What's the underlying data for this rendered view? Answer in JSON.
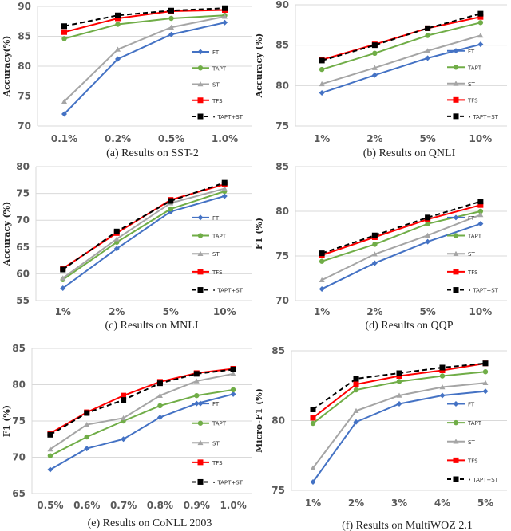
{
  "series_styles": [
    {
      "name": "FT",
      "color": "#4472C4",
      "marker": "diamond",
      "dash": false
    },
    {
      "name": "TAPT",
      "color": "#70AD47",
      "marker": "circle",
      "dash": false
    },
    {
      "name": "ST",
      "color": "#A5A5A5",
      "marker": "triangle",
      "dash": false
    },
    {
      "name": "TFS",
      "color": "#FF0000",
      "marker": "square",
      "dash": false
    },
    {
      "name": "TAPT+ST",
      "color": "#000000",
      "marker": "square",
      "dash": true
    }
  ],
  "chart_data": [
    {
      "type": "line",
      "caption": "(a) Results on SST-2",
      "ylabel": "Accuracy(%)",
      "xlabel": "",
      "ylim": [
        70,
        90
      ],
      "yticks": [
        70,
        75,
        80,
        85,
        90
      ],
      "grid": true,
      "legend": "right",
      "categories": [
        "0.1%",
        "0.2%",
        "0.5%",
        "1.0%"
      ],
      "series": [
        {
          "name": "FT",
          "values": [
            72.0,
            81.2,
            85.3,
            87.3
          ]
        },
        {
          "name": "TAPT",
          "values": [
            84.6,
            87.0,
            88.0,
            88.5
          ]
        },
        {
          "name": "ST",
          "values": [
            74.1,
            82.8,
            86.5,
            88.3
          ]
        },
        {
          "name": "TFS",
          "values": [
            85.7,
            88.0,
            89.2,
            89.4
          ]
        },
        {
          "name": "TAPT+ST",
          "values": [
            86.7,
            88.5,
            89.3,
            89.7
          ]
        }
      ]
    },
    {
      "type": "line",
      "caption": "(b) Results on QNLI",
      "ylabel": "Accuracy (%)",
      "xlabel": "",
      "ylim": [
        75,
        90
      ],
      "yticks": [
        75,
        80,
        85,
        90
      ],
      "grid": true,
      "legend": "right",
      "categories": [
        "1%",
        "2%",
        "5%",
        "10%"
      ],
      "series": [
        {
          "name": "FT",
          "values": [
            79.1,
            81.3,
            83.4,
            85.1
          ]
        },
        {
          "name": "TAPT",
          "values": [
            82.0,
            84.0,
            86.2,
            87.8
          ]
        },
        {
          "name": "ST",
          "values": [
            80.2,
            82.2,
            84.3,
            86.2
          ]
        },
        {
          "name": "TFS",
          "values": [
            83.2,
            85.1,
            87.1,
            88.5
          ]
        },
        {
          "name": "TAPT+ST",
          "values": [
            83.1,
            85.0,
            87.1,
            88.9
          ]
        }
      ]
    },
    {
      "type": "line",
      "caption": "(c) Results on MNLI",
      "ylabel": "Accuracy (%)",
      "xlabel": "",
      "ylim": [
        55,
        80
      ],
      "yticks": [
        55,
        60,
        65,
        70,
        75,
        80
      ],
      "grid": true,
      "legend": "right",
      "categories": [
        "1%",
        "2%",
        "5%",
        "10%"
      ],
      "series": [
        {
          "name": "FT",
          "values": [
            57.3,
            64.7,
            71.6,
            74.5
          ]
        },
        {
          "name": "TAPT",
          "values": [
            58.9,
            65.9,
            72.1,
            75.4
          ]
        },
        {
          "name": "ST",
          "values": [
            59.2,
            66.5,
            73.2,
            75.9
          ]
        },
        {
          "name": "TFS",
          "values": [
            61.0,
            67.6,
            73.8,
            76.7
          ]
        },
        {
          "name": "TAPT+ST",
          "values": [
            60.8,
            67.9,
            73.6,
            77.0
          ]
        }
      ]
    },
    {
      "type": "line",
      "caption": "(d) Results on QQP",
      "ylabel": "F1 (%)",
      "xlabel": "",
      "ylim": [
        70,
        85
      ],
      "yticks": [
        70,
        75,
        80,
        85
      ],
      "grid": true,
      "legend": "right",
      "categories": [
        "1%",
        "2%",
        "5%",
        "10%"
      ],
      "series": [
        {
          "name": "FT",
          "values": [
            71.3,
            74.2,
            76.6,
            78.6
          ]
        },
        {
          "name": "TAPT",
          "values": [
            74.4,
            76.3,
            78.6,
            80.0
          ]
        },
        {
          "name": "ST",
          "values": [
            72.3,
            75.2,
            77.3,
            79.6
          ]
        },
        {
          "name": "TFS",
          "values": [
            75.1,
            77.1,
            79.1,
            80.7
          ]
        },
        {
          "name": "TAPT+ST",
          "values": [
            75.3,
            77.3,
            79.3,
            81.1
          ]
        }
      ]
    },
    {
      "type": "line",
      "caption": "(e) Results on CoNLL 2003",
      "ylabel": "F1 (%)",
      "xlabel": "",
      "ylim": [
        65,
        85
      ],
      "yticks": [
        65,
        70,
        75,
        80,
        85
      ],
      "grid": true,
      "legend": "right",
      "categories": [
        "0.5%",
        "0.6%",
        "0.7%",
        "0.8%",
        "0.9%",
        "1.0%"
      ],
      "series": [
        {
          "name": "FT",
          "values": [
            68.3,
            71.2,
            72.5,
            75.5,
            77.4,
            78.7
          ]
        },
        {
          "name": "TAPT",
          "values": [
            70.2,
            72.8,
            75.0,
            77.1,
            78.5,
            79.3
          ]
        },
        {
          "name": "ST",
          "values": [
            71.1,
            74.5,
            75.4,
            78.5,
            80.5,
            81.5
          ]
        },
        {
          "name": "TFS",
          "values": [
            73.3,
            76.2,
            78.5,
            80.4,
            81.6,
            82.2
          ]
        },
        {
          "name": "TAPT+ST",
          "values": [
            73.1,
            76.1,
            77.9,
            80.2,
            81.5,
            82.1
          ]
        }
      ]
    },
    {
      "type": "line",
      "caption": "(f) Results on MultiWOZ 2.1",
      "ylabel": "Micro-F1 (%)",
      "xlabel": "",
      "ylim": [
        75,
        85
      ],
      "yticks": [
        75,
        80,
        85
      ],
      "grid": true,
      "legend": "right",
      "categories": [
        "1%",
        "2%",
        "3%",
        "4%",
        "5%"
      ],
      "series": [
        {
          "name": "FT",
          "values": [
            75.6,
            79.9,
            81.2,
            81.8,
            82.1
          ]
        },
        {
          "name": "TAPT",
          "values": [
            79.8,
            82.2,
            82.8,
            83.2,
            83.5
          ]
        },
        {
          "name": "ST",
          "values": [
            76.6,
            80.7,
            81.8,
            82.4,
            82.7
          ]
        },
        {
          "name": "TFS",
          "values": [
            80.2,
            82.6,
            83.2,
            83.6,
            84.1
          ]
        },
        {
          "name": "TAPT+ST",
          "values": [
            80.8,
            83.0,
            83.4,
            83.8,
            84.1
          ]
        }
      ]
    }
  ]
}
